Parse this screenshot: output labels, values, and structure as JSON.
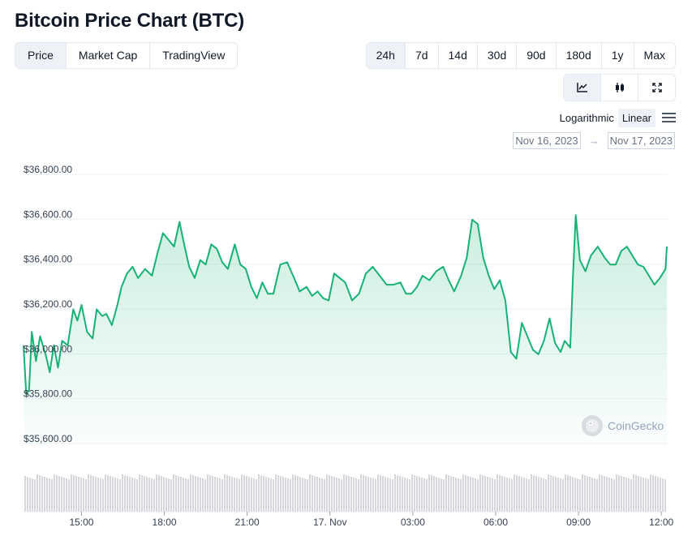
{
  "title": "Bitcoin Price Chart (BTC)",
  "metric_tabs": [
    {
      "label": "Price",
      "active": true
    },
    {
      "label": "Market Cap",
      "active": false
    },
    {
      "label": "TradingView",
      "active": false
    }
  ],
  "range_tabs": [
    {
      "label": "24h",
      "active": true
    },
    {
      "label": "7d",
      "active": false
    },
    {
      "label": "14d",
      "active": false
    },
    {
      "label": "30d",
      "active": false
    },
    {
      "label": "90d",
      "active": false
    },
    {
      "label": "180d",
      "active": false
    },
    {
      "label": "1y",
      "active": false
    },
    {
      "label": "Max",
      "active": false
    }
  ],
  "view_toggle": [
    {
      "icon": "line-chart-icon",
      "active": true
    },
    {
      "icon": "candlestick-icon",
      "active": false
    },
    {
      "icon": "fullscreen-icon",
      "active": false
    }
  ],
  "scale": {
    "logarithmic": "Logarithmic",
    "linear": "Linear",
    "active": "linear",
    "menu_icon": "menu-icon"
  },
  "date_range": {
    "from": "Nov 16, 2023",
    "arrow": "→",
    "to": "Nov 17, 2023"
  },
  "watermark": "CoinGecko",
  "colors": {
    "line": "#16b276",
    "fill": "#16b276",
    "volume": "#d5d7dc",
    "grid": "#eef0f3"
  },
  "chart_data": {
    "type": "area",
    "title": "",
    "xlabel": "",
    "ylabel": "",
    "ylim": [
      35600,
      36800
    ],
    "y_ticks": [
      "$36,800.00",
      "$36,600.00",
      "$36,400.00",
      "$36,200.00",
      "$36,000.00",
      "$35,800.00",
      "$35,600.00"
    ],
    "y_tick_values": [
      36800,
      36600,
      36400,
      36200,
      36000,
      35800,
      35600
    ],
    "x_range_hours": [
      12.9,
      36.2
    ],
    "x_ticks": [
      {
        "label": "15:00",
        "hour": 15
      },
      {
        "label": "18:00",
        "hour": 18
      },
      {
        "label": "21:00",
        "hour": 21
      },
      {
        "label": "17. Nov",
        "hour": 24
      },
      {
        "label": "03:00",
        "hour": 27
      },
      {
        "label": "06:00",
        "hour": 30
      },
      {
        "label": "09:00",
        "hour": 33
      },
      {
        "label": "12:00",
        "hour": 36
      }
    ],
    "grid": true,
    "series": [
      {
        "name": "",
        "points": [
          [
            12.9,
            36020
          ],
          [
            13.0,
            35800
          ],
          [
            13.1,
            35820
          ],
          [
            13.2,
            36080
          ],
          [
            13.35,
            35950
          ],
          [
            13.5,
            36060
          ],
          [
            13.7,
            35980
          ],
          [
            13.85,
            35900
          ],
          [
            14.0,
            36020
          ],
          [
            14.15,
            35920
          ],
          [
            14.3,
            36040
          ],
          [
            14.5,
            36020
          ],
          [
            14.7,
            36180
          ],
          [
            14.85,
            36130
          ],
          [
            15.0,
            36200
          ],
          [
            15.2,
            36080
          ],
          [
            15.4,
            36050
          ],
          [
            15.55,
            36180
          ],
          [
            15.75,
            36150
          ],
          [
            15.9,
            36160
          ],
          [
            16.1,
            36110
          ],
          [
            16.3,
            36200
          ],
          [
            16.45,
            36280
          ],
          [
            16.65,
            36340
          ],
          [
            16.85,
            36370
          ],
          [
            17.05,
            36320
          ],
          [
            17.3,
            36360
          ],
          [
            17.55,
            36330
          ],
          [
            17.75,
            36430
          ],
          [
            17.95,
            36520
          ],
          [
            18.15,
            36490
          ],
          [
            18.35,
            36460
          ],
          [
            18.55,
            36570
          ],
          [
            18.7,
            36480
          ],
          [
            18.9,
            36370
          ],
          [
            19.1,
            36320
          ],
          [
            19.3,
            36400
          ],
          [
            19.5,
            36380
          ],
          [
            19.7,
            36470
          ],
          [
            19.9,
            36450
          ],
          [
            20.1,
            36390
          ],
          [
            20.3,
            36360
          ],
          [
            20.55,
            36470
          ],
          [
            20.75,
            36380
          ],
          [
            20.95,
            36360
          ],
          [
            21.15,
            36280
          ],
          [
            21.35,
            36230
          ],
          [
            21.55,
            36300
          ],
          [
            21.75,
            36250
          ],
          [
            21.95,
            36250
          ],
          [
            22.2,
            36380
          ],
          [
            22.45,
            36390
          ],
          [
            22.7,
            36320
          ],
          [
            22.9,
            36260
          ],
          [
            23.15,
            36280
          ],
          [
            23.35,
            36240
          ],
          [
            23.55,
            36260
          ],
          [
            23.75,
            36230
          ],
          [
            23.95,
            36220
          ],
          [
            24.15,
            36340
          ],
          [
            24.35,
            36320
          ],
          [
            24.55,
            36300
          ],
          [
            24.8,
            36220
          ],
          [
            25.05,
            36250
          ],
          [
            25.3,
            36340
          ],
          [
            25.55,
            36370
          ],
          [
            25.8,
            36330
          ],
          [
            26.05,
            36290
          ],
          [
            26.3,
            36290
          ],
          [
            26.55,
            36300
          ],
          [
            26.75,
            36250
          ],
          [
            26.95,
            36250
          ],
          [
            27.15,
            36280
          ],
          [
            27.35,
            36330
          ],
          [
            27.6,
            36310
          ],
          [
            27.85,
            36350
          ],
          [
            28.1,
            36370
          ],
          [
            28.3,
            36310
          ],
          [
            28.5,
            36260
          ],
          [
            28.75,
            36330
          ],
          [
            28.95,
            36410
          ],
          [
            29.15,
            36580
          ],
          [
            29.35,
            36560
          ],
          [
            29.55,
            36410
          ],
          [
            29.75,
            36330
          ],
          [
            29.95,
            36270
          ],
          [
            30.15,
            36310
          ],
          [
            30.35,
            36220
          ],
          [
            30.55,
            35990
          ],
          [
            30.75,
            35960
          ],
          [
            30.95,
            36120
          ],
          [
            31.15,
            36060
          ],
          [
            31.35,
            36000
          ],
          [
            31.55,
            35980
          ],
          [
            31.75,
            36040
          ],
          [
            31.95,
            36140
          ],
          [
            32.15,
            36030
          ],
          [
            32.35,
            35990
          ],
          [
            32.5,
            36040
          ],
          [
            32.7,
            36010
          ],
          [
            32.8,
            36330
          ],
          [
            32.9,
            36600
          ],
          [
            33.05,
            36400
          ],
          [
            33.25,
            36350
          ],
          [
            33.45,
            36420
          ],
          [
            33.7,
            36460
          ],
          [
            33.95,
            36410
          ],
          [
            34.15,
            36380
          ],
          [
            34.35,
            36380
          ],
          [
            34.55,
            36440
          ],
          [
            34.75,
            36460
          ],
          [
            34.95,
            36420
          ],
          [
            35.15,
            36380
          ],
          [
            35.35,
            36370
          ],
          [
            35.55,
            36330
          ],
          [
            35.75,
            36290
          ],
          [
            35.95,
            36320
          ],
          [
            36.15,
            36360
          ],
          [
            36.2,
            36460
          ]
        ]
      }
    ]
  }
}
